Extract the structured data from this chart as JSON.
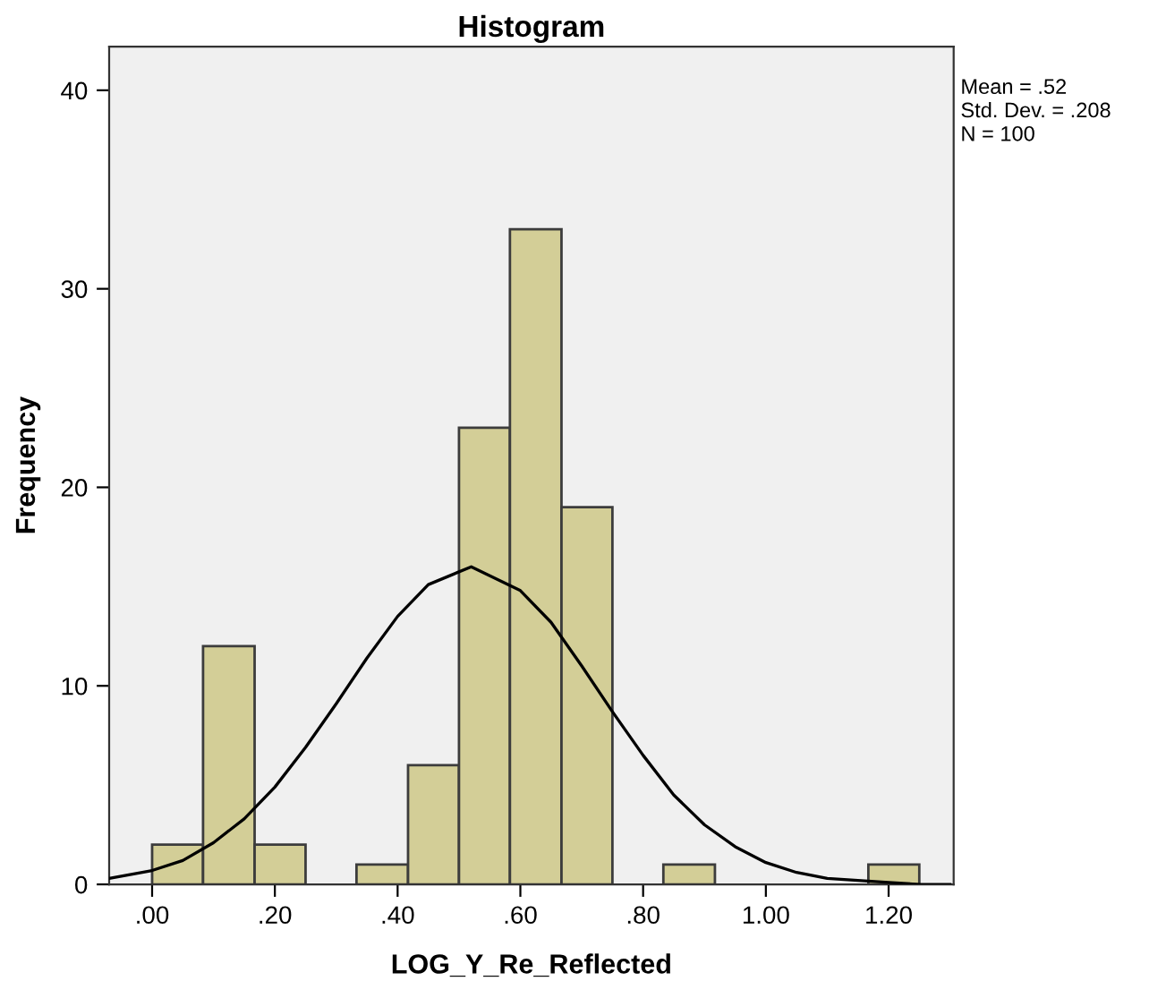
{
  "chart_data": {
    "type": "histogram",
    "title": "Histogram",
    "xlabel": "LOG_Y_Re_Reflected",
    "ylabel": "Frequency",
    "bins": [
      0,
      0.083,
      0.167,
      0.25,
      0.333,
      0.417,
      0.5,
      0.583,
      0.667,
      0.75,
      0.833,
      0.917,
      1.167,
      1.25
    ],
    "values": [
      2,
      12,
      2,
      0,
      1,
      6,
      23,
      33,
      19,
      0,
      1,
      0,
      1
    ],
    "color": "#d3ce97",
    "series": [
      {
        "type": "line",
        "color": "#000000",
        "x": [
          -0.07,
          0.0,
          0.05,
          0.1,
          0.15,
          0.2,
          0.25,
          0.3,
          0.35,
          0.4,
          0.45,
          0.52,
          0.6,
          0.65,
          0.7,
          0.75,
          0.8,
          0.85,
          0.9,
          0.95,
          1.0,
          1.05,
          1.1,
          1.15,
          1.2,
          1.25,
          1.3
        ],
        "values": [
          0.3,
          0.7,
          1.2,
          2.1,
          3.3,
          4.9,
          6.9,
          9.1,
          11.4,
          13.5,
          15.1,
          16.0,
          14.8,
          13.2,
          11.0,
          8.7,
          6.5,
          4.5,
          3.0,
          1.9,
          1.1,
          0.6,
          0.3,
          0.2,
          0.1,
          0.0,
          0.0
        ]
      }
    ],
    "xlim": [
      -0.07,
      1.306
    ],
    "ylim": [
      0,
      42.2
    ],
    "xticks": [
      {
        "value": 0,
        "label": ".00"
      },
      {
        "value": 0.2,
        "label": ".20"
      },
      {
        "value": 0.4,
        "label": ".40"
      },
      {
        "value": 0.6,
        "label": ".60"
      },
      {
        "value": 0.8,
        "label": ".80"
      },
      {
        "value": 1.0,
        "label": "1.00"
      },
      {
        "value": 1.2,
        "label": "1.20"
      }
    ],
    "yticks": [
      0,
      10,
      20,
      30,
      40
    ],
    "annotations": [
      "Mean = .52",
      "Std. Dev. = .208",
      "N = 100"
    ],
    "grid": false,
    "legend": false
  }
}
